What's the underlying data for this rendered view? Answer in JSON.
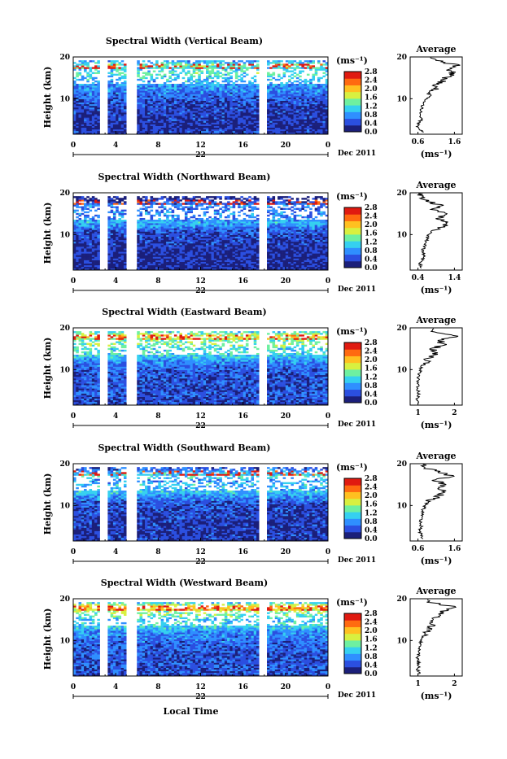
{
  "figure": {
    "xlabel": "Local Time",
    "colorbar_unit": "(ms⁻¹)",
    "colorbar_ticks": [
      "0.0",
      "0.4",
      "0.8",
      "1.2",
      "1.6",
      "2.0",
      "2.4",
      "2.8"
    ],
    "colorbar_colors": [
      "#1b1f7a",
      "#2b4fe0",
      "#2f8fff",
      "#35d0f0",
      "#6ef0a0",
      "#d8f040",
      "#ffc020",
      "#ff6a10",
      "#e01a10"
    ],
    "x_ticks": [
      "0",
      "4",
      "8",
      "12",
      "16",
      "20",
      "0"
    ],
    "y_ticks": [
      "10",
      "20"
    ],
    "date_label": "22",
    "month_label": "Dec 2011",
    "avg_title": "Average",
    "avg_xlabel": "(ms⁻¹)",
    "gap_hours": [
      [
        2.6,
        3.3
      ],
      [
        5.1,
        6.0
      ],
      [
        17.6,
        18.3
      ]
    ]
  },
  "chart_data": [
    {
      "type": "heatmap",
      "title": "Spectral Width (Vertical Beam)",
      "ylabel": "Height (km)",
      "xlim": [
        0,
        24
      ],
      "ylim": [
        1.5,
        20
      ],
      "clim": [
        0.0,
        2.8
      ],
      "x_ticks": [
        "0",
        "4",
        "8",
        "12",
        "16",
        "20",
        "0"
      ],
      "y_ticks": [
        10,
        20
      ],
      "avg_profile": {
        "x_ticks": [
          "0.6",
          "1.6"
        ],
        "xlim": [
          0.4,
          1.8
        ],
        "height_km": [
          2,
          3,
          4,
          5,
          6,
          7,
          8,
          9,
          10,
          11,
          12,
          13,
          14,
          15,
          16,
          17,
          18,
          19,
          20
        ],
        "width_ms": [
          0.75,
          0.6,
          0.62,
          0.7,
          0.66,
          0.7,
          0.72,
          0.78,
          0.85,
          0.95,
          1.05,
          1.1,
          1.25,
          1.3,
          1.55,
          1.4,
          1.65,
          1.2,
          0.9
        ]
      }
    },
    {
      "type": "heatmap",
      "title": "Spectral Width (Northward Beam)",
      "ylabel": "Height (km)",
      "xlim": [
        0,
        24
      ],
      "ylim": [
        1.5,
        20
      ],
      "clim": [
        0.0,
        2.8
      ],
      "x_ticks": [
        "0",
        "4",
        "8",
        "12",
        "16",
        "20",
        "0"
      ],
      "y_ticks": [
        10,
        20
      ],
      "avg_profile": {
        "x_ticks": [
          "0.4",
          "1.4"
        ],
        "xlim": [
          0.3,
          1.6
        ],
        "height_km": [
          2,
          3,
          4,
          5,
          6,
          7,
          8,
          9,
          10,
          11,
          12,
          13,
          14,
          15,
          16,
          17,
          18,
          19,
          20
        ],
        "width_ms": [
          0.6,
          0.55,
          0.6,
          0.65,
          0.6,
          0.65,
          0.7,
          0.72,
          0.75,
          0.85,
          1.1,
          1.25,
          1.0,
          1.15,
          0.9,
          1.05,
          0.7,
          0.55,
          0.5
        ]
      }
    },
    {
      "type": "heatmap",
      "title": "Spectral Width (Eastward Beam)",
      "ylabel": "Height (km)",
      "xlim": [
        0,
        24
      ],
      "ylim": [
        1.5,
        20
      ],
      "clim": [
        0.0,
        2.8
      ],
      "x_ticks": [
        "0",
        "4",
        "8",
        "12",
        "16",
        "20",
        "0"
      ],
      "y_ticks": [
        10,
        20
      ],
      "avg_profile": {
        "x_ticks": [
          "1",
          "2"
        ],
        "xlim": [
          0.5,
          2.5
        ],
        "height_km": [
          2,
          3,
          4,
          5,
          6,
          7,
          8,
          9,
          10,
          11,
          12,
          13,
          14,
          15,
          16,
          17,
          18,
          19,
          20
        ],
        "width_ms": [
          0.8,
          0.75,
          0.85,
          0.8,
          0.78,
          0.8,
          0.82,
          0.85,
          0.9,
          0.95,
          1.1,
          1.3,
          1.5,
          1.4,
          1.8,
          1.6,
          2.2,
          1.5,
          1.2
        ]
      }
    },
    {
      "type": "heatmap",
      "title": "Spectral Width (Southward Beam)",
      "ylabel": "Height (km)",
      "xlim": [
        0,
        24
      ],
      "ylim": [
        1.5,
        20
      ],
      "clim": [
        0.0,
        2.8
      ],
      "x_ticks": [
        "0",
        "4",
        "8",
        "12",
        "16",
        "20",
        "0"
      ],
      "y_ticks": [
        10,
        20
      ],
      "avg_profile": {
        "x_ticks": [
          "0.6",
          "1.6"
        ],
        "xlim": [
          0.4,
          1.8
        ],
        "height_km": [
          2,
          3,
          4,
          5,
          6,
          7,
          8,
          9,
          10,
          11,
          12,
          13,
          14,
          15,
          16,
          17,
          18,
          19,
          20
        ],
        "width_ms": [
          0.75,
          0.7,
          0.65,
          0.7,
          0.68,
          0.7,
          0.72,
          0.75,
          0.8,
          0.9,
          1.1,
          1.3,
          1.2,
          1.35,
          1.1,
          1.5,
          1.2,
          0.8,
          0.7
        ]
      }
    },
    {
      "type": "heatmap",
      "title": "Spectral Width (Westward Beam)",
      "ylabel": "Height (km)",
      "xlim": [
        0,
        24
      ],
      "ylim": [
        1.5,
        20
      ],
      "clim": [
        0.0,
        2.8
      ],
      "x_ticks": [
        "0",
        "4",
        "8",
        "12",
        "16",
        "20",
        "0"
      ],
      "y_ticks": [
        10,
        20
      ],
      "avg_profile": {
        "x_ticks": [
          "1",
          "2"
        ],
        "xlim": [
          0.5,
          2.6
        ],
        "height_km": [
          2,
          3,
          4,
          5,
          6,
          7,
          8,
          9,
          10,
          11,
          12,
          13,
          14,
          15,
          16,
          17,
          18,
          19,
          20
        ],
        "width_ms": [
          0.85,
          0.8,
          0.85,
          0.82,
          0.8,
          0.85,
          0.88,
          0.9,
          0.95,
          1.0,
          1.1,
          1.3,
          1.45,
          1.3,
          1.6,
          1.8,
          2.4,
          1.4,
          1.1
        ]
      }
    }
  ]
}
